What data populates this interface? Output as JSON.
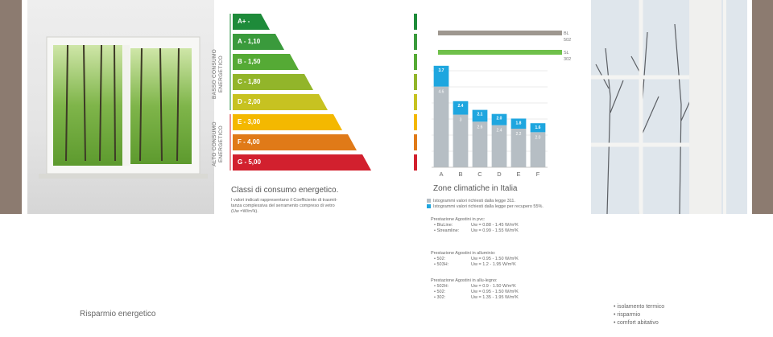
{
  "energy": {
    "classes": [
      {
        "label": "A+ -",
        "color": "#1e8b3a"
      },
      {
        "label": "A - 1,10",
        "color": "#3a9a3c"
      },
      {
        "label": "B - 1,50",
        "color": "#55aa35"
      },
      {
        "label": "C - 1,80",
        "color": "#92b52a"
      },
      {
        "label": "D - 2,00",
        "color": "#c7c221"
      },
      {
        "label": "E - 3,00",
        "color": "#f4b800"
      },
      {
        "label": "F - 4,00",
        "color": "#e07a18"
      },
      {
        "label": "G - 5,00",
        "color": "#d2202e"
      }
    ],
    "low_label_1": "BASSO CONSUMO",
    "low_label_2": "ENERGETICO",
    "high_label_1": "ALTO CONSUMO",
    "high_label_2": "ENERGETICO",
    "title": "Classi di consumo energetico.",
    "desc_1": "I valori indicati rappresentano il Coefficiente di trasmit-",
    "desc_2": "tanza complessiva del serramento compreso di vetro",
    "desc_3": "(Uw =W/m²k)."
  },
  "chart_data": {
    "type": "bar",
    "title": "Zone climatiche in Italia",
    "categories": [
      "A",
      "B",
      "C",
      "D",
      "E",
      "F"
    ],
    "series": [
      {
        "name": "Istogrammi valori richiesti dalla legge 311.",
        "values": [
          4.6,
          3.0,
          2.6,
          2.4,
          2.2,
          2.0
        ],
        "labels": [
          "4.6",
          "3",
          "2.6",
          "2.4",
          "2.2",
          "2.0"
        ],
        "color": "#b6bec4"
      },
      {
        "name": "Istogrammi valori richiesti dalla legge per recupero 55%.",
        "values": [
          3.7,
          2.4,
          2.1,
          2.0,
          1.8,
          1.6
        ],
        "labels": [
          "3.7",
          "2.4",
          "2.1",
          "2.0",
          "1.8",
          "1.6"
        ],
        "color": "#1ea6df"
      }
    ],
    "reference_lines": [
      {
        "label_1": "BL",
        "label_2": "502",
        "color": "#9e978f"
      },
      {
        "label_1": "SL",
        "label_2": "302",
        "color": "#6fc04a"
      }
    ]
  },
  "legend": {
    "gray_text": "Istogrammi valori richiesti dalla legge 311.",
    "blue_text": "Istogrammi valori richiesti dalla legge per recupero 55%."
  },
  "performance": {
    "groups": [
      {
        "title": "Prestazione Agostini in pvc:",
        "items": [
          {
            "name": "• BluLine:",
            "value": "Uw = 0.88 - 1.45 W/m²K"
          },
          {
            "name": "• Streamline:",
            "value": "Uw = 0.99 - 1.55 W/m²K"
          }
        ]
      },
      {
        "title": "Prestazione Agostini in alluminio:",
        "items": [
          {
            "name": "• 502:",
            "value": "Uw = 0.95 - 1.50 W/m²K"
          },
          {
            "name": "• 503H:",
            "value": "Uw = 1.2   - 1.95 W/m²K"
          }
        ]
      },
      {
        "title": "Prestazione Agostini in allu-legno:",
        "items": [
          {
            "name": "• 502H:",
            "value": "Uw = 0.9   - 1.50 W/m²K"
          },
          {
            "name": "• 502:",
            "value": "Uw = 0.95 - 1.50 W/m²K"
          },
          {
            "name": "• 302:",
            "value": "Uw = 1.35 - 1.95 W/m²K"
          }
        ]
      }
    ]
  },
  "footer": {
    "left_title": "Risparmio energetico",
    "bullets": [
      "• isolamento termico",
      "• risparmio",
      "• comfort abitativo"
    ]
  },
  "colors": {
    "accent_brown": "#8c7b70",
    "accent_blue": "#1ea6df"
  }
}
